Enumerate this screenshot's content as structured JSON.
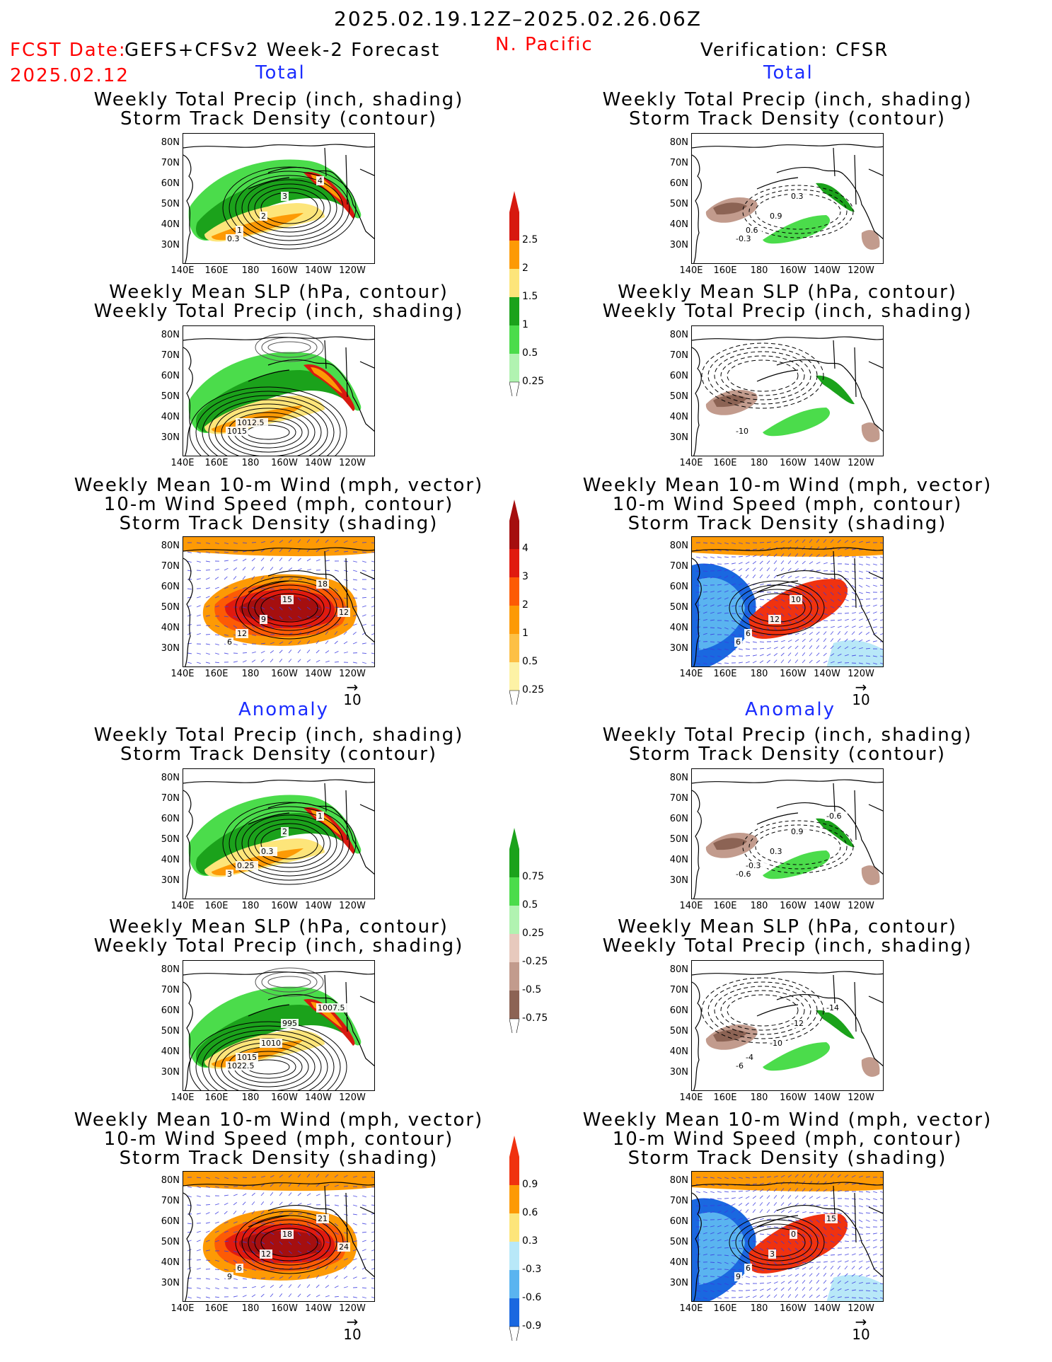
{
  "header": {
    "date_range": "2025.02.19.12Z–2025.02.26.06Z",
    "fcst_label": "FCST Date:",
    "fcst_model": "GEFS+CFSv2 Week-2 Forecast",
    "fcst_date": "2025.02.12",
    "region": "N. Pacific",
    "verification": "Verification: CFSR"
  },
  "sections": {
    "total": "Total",
    "anomaly": "Anomaly"
  },
  "titles": {
    "precip_track": [
      "Weekly Total Precip (inch, shading)",
      "Storm Track Density (contour)"
    ],
    "slp_precip": [
      "Weekly Mean SLP (hPa, contour)",
      "Weekly Total Precip (inch, shading)"
    ],
    "wind": [
      "Weekly Mean 10-m Wind (mph, vector)",
      "10-m Wind Speed (mph, contour)",
      "Storm Track Density (shading)"
    ]
  },
  "axes": {
    "lat": [
      "80N",
      "70N",
      "60N",
      "50N",
      "40N",
      "30N"
    ],
    "lon": [
      "140E",
      "160E",
      "180",
      "160W",
      "140W",
      "120W"
    ]
  },
  "vector_ref": "10",
  "colorbars": {
    "precip_total": {
      "labels": [
        "2.5",
        "2",
        "1.5",
        "1",
        "0.5",
        "0.25"
      ],
      "colors": [
        "#d7190f",
        "#fd9a05",
        "#fde57a",
        "#1ba21b",
        "#4bdc4b",
        "#b1f3b1"
      ]
    },
    "track_total": {
      "labels": [
        "4",
        "3",
        "2",
        "1",
        "0.5",
        "0.25"
      ],
      "colors": [
        "#a50f0f",
        "#e01a0f",
        "#fd5b05",
        "#fd9a05",
        "#fdc045",
        "#fdf2a5"
      ]
    },
    "precip_anom": {
      "labels": [
        "0.75",
        "0.5",
        "0.25",
        "-0.25",
        "-0.5",
        "-0.75"
      ],
      "colors": [
        "#1ba21b",
        "#4bdc4b",
        "#b1f3b1",
        "#e7c9bd",
        "#c29b8d",
        "#8c6354"
      ]
    },
    "track_anom": {
      "labels": [
        "0.9",
        "0.6",
        "0.3",
        "-0.3",
        "-0.6",
        "-0.9"
      ],
      "colors": [
        "#f0320f",
        "#fd9a05",
        "#fde57a",
        "#b8e8f8",
        "#5ab4f0",
        "#1a68e0"
      ]
    }
  },
  "panel_labels": {
    "p1": [
      "0.3",
      "1",
      "2",
      "3",
      "4"
    ],
    "p2": [
      "1015",
      "1012.5"
    ],
    "p3": [
      "6",
      "12",
      "9",
      "15",
      "18",
      "12"
    ],
    "p4": [
      "3",
      "0.25",
      "0.3",
      "2",
      "1"
    ],
    "p5": [
      "1022.5",
      "1015",
      "1010",
      "995",
      "1007.5"
    ],
    "p6": [
      "9",
      "6",
      "12",
      "18",
      "21",
      "24"
    ],
    "p7": [
      "-0.3",
      "0.6",
      "0.9",
      "0.3"
    ],
    "p8": [
      "-10"
    ],
    "p9": [
      "6",
      "6",
      "12",
      "10"
    ],
    "p10": [
      "-0.6",
      "-0.3",
      "0.3",
      "0.9",
      "-0.6"
    ],
    "p11": [
      "-6",
      "-4",
      "-10",
      "-12",
      "-14"
    ],
    "p12": [
      "9",
      "6",
      "3",
      "0",
      "15"
    ]
  }
}
